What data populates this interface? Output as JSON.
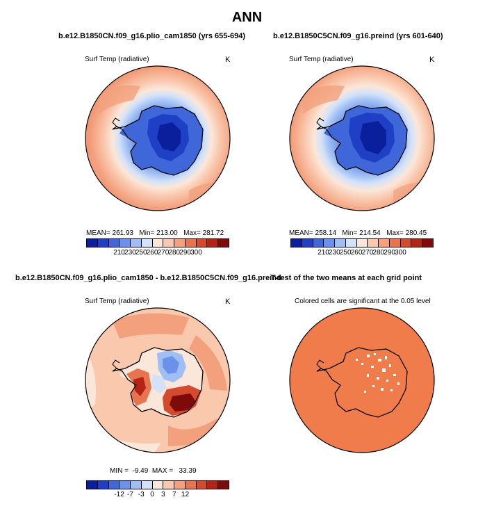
{
  "page_title": "ANN",
  "panels": {
    "p1": {
      "title": "b.e12.B1850CN.f09_g16.plio_cam1850 (yrs 655-694)",
      "variable": "Surf Temp (radiative)",
      "units": "K",
      "stats": "MEAN= 261.93   Min= 213.00   Max= 281.72",
      "colorbar": {
        "labels": [
          "210",
          "230",
          "250",
          "260",
          "270",
          "280",
          "290",
          "300"
        ],
        "colors": [
          "#0a1f9c",
          "#1f3fc4",
          "#3f67da",
          "#6a92ea",
          "#9fbff4",
          "#d3e2f9",
          "#fbe7d9",
          "#f9c8ad",
          "#f3a07d",
          "#e8744f",
          "#d34a2c",
          "#b32416",
          "#7f0a0a"
        ]
      }
    },
    "p2": {
      "title": "b.e12.B1850C5CN.f09_g16.preind (yrs 601-640)",
      "variable": "Surf Temp (radiative)",
      "units": "K",
      "stats": "MEAN= 258.14   Min= 214.54   Max= 280.45",
      "colorbar": {
        "labels": [
          "210",
          "230",
          "250",
          "260",
          "270",
          "280",
          "290",
          "300"
        ],
        "colors": [
          "#0a1f9c",
          "#1f3fc4",
          "#3f67da",
          "#6a92ea",
          "#9fbff4",
          "#d3e2f9",
          "#fbe7d9",
          "#f9c8ad",
          "#f3a07d",
          "#e8744f",
          "#d34a2c",
          "#b32416",
          "#7f0a0a"
        ]
      }
    },
    "p3": {
      "title": "b.e12.B1850CN.f09_g16.plio_cam1850 - b.e12.B1850C5CN.f09_g16.preind",
      "variable": "Surf Temp (radiative)",
      "units": "K",
      "stats": "MIN =  -9.49  MAX =   33.39",
      "colorbar": {
        "labels": [
          "-12",
          "-7",
          "-3",
          "0",
          "3",
          "7",
          "12"
        ],
        "colors": [
          "#0a1f9c",
          "#1f3fc4",
          "#3f67da",
          "#6a92ea",
          "#9fbff4",
          "#d3e2f9",
          "#fbe7d9",
          "#f9c8ad",
          "#f3a07d",
          "#e8744f",
          "#d34a2c",
          "#b32416",
          "#7f0a0a"
        ]
      }
    },
    "p4": {
      "title": "T-test of the two means at each grid point",
      "caption": "Colored cells are significant at the 0.05 level",
      "fill_color": "#f07c4c"
    }
  }
}
